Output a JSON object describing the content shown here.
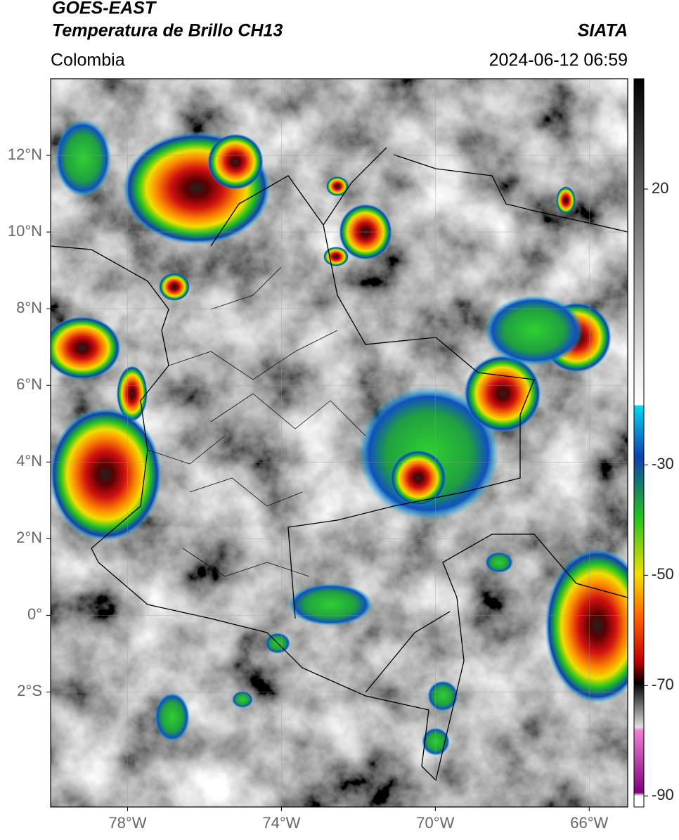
{
  "header": {
    "satellite": "GOES-EAST",
    "product": "Temperatura de Brillo CH13",
    "region": "Colombia",
    "source": "SIATA",
    "datetime": "2024-06-12 06:59"
  },
  "map": {
    "xlim": [
      -80,
      -65
    ],
    "ylim": [
      -5,
      14
    ],
    "xticks": [
      {
        "value": -78,
        "label": "78°W"
      },
      {
        "value": -74,
        "label": "74°W"
      },
      {
        "value": -70,
        "label": "70°W"
      },
      {
        "value": -66,
        "label": "66°W"
      }
    ],
    "yticks": [
      {
        "value": 12,
        "label": "12°N"
      },
      {
        "value": 10,
        "label": "10°N"
      },
      {
        "value": 8,
        "label": "8°N"
      },
      {
        "value": 6,
        "label": "6°N"
      },
      {
        "value": 4,
        "label": "4°N"
      },
      {
        "value": 2,
        "label": "2°N"
      },
      {
        "value": 0,
        "label": "0°"
      },
      {
        "value": -2,
        "label": "2°S"
      }
    ],
    "grid": true
  },
  "colorbar": {
    "lim": [
      -92,
      40
    ],
    "ticks": [
      20,
      -30,
      -50,
      -70,
      -90
    ]
  }
}
